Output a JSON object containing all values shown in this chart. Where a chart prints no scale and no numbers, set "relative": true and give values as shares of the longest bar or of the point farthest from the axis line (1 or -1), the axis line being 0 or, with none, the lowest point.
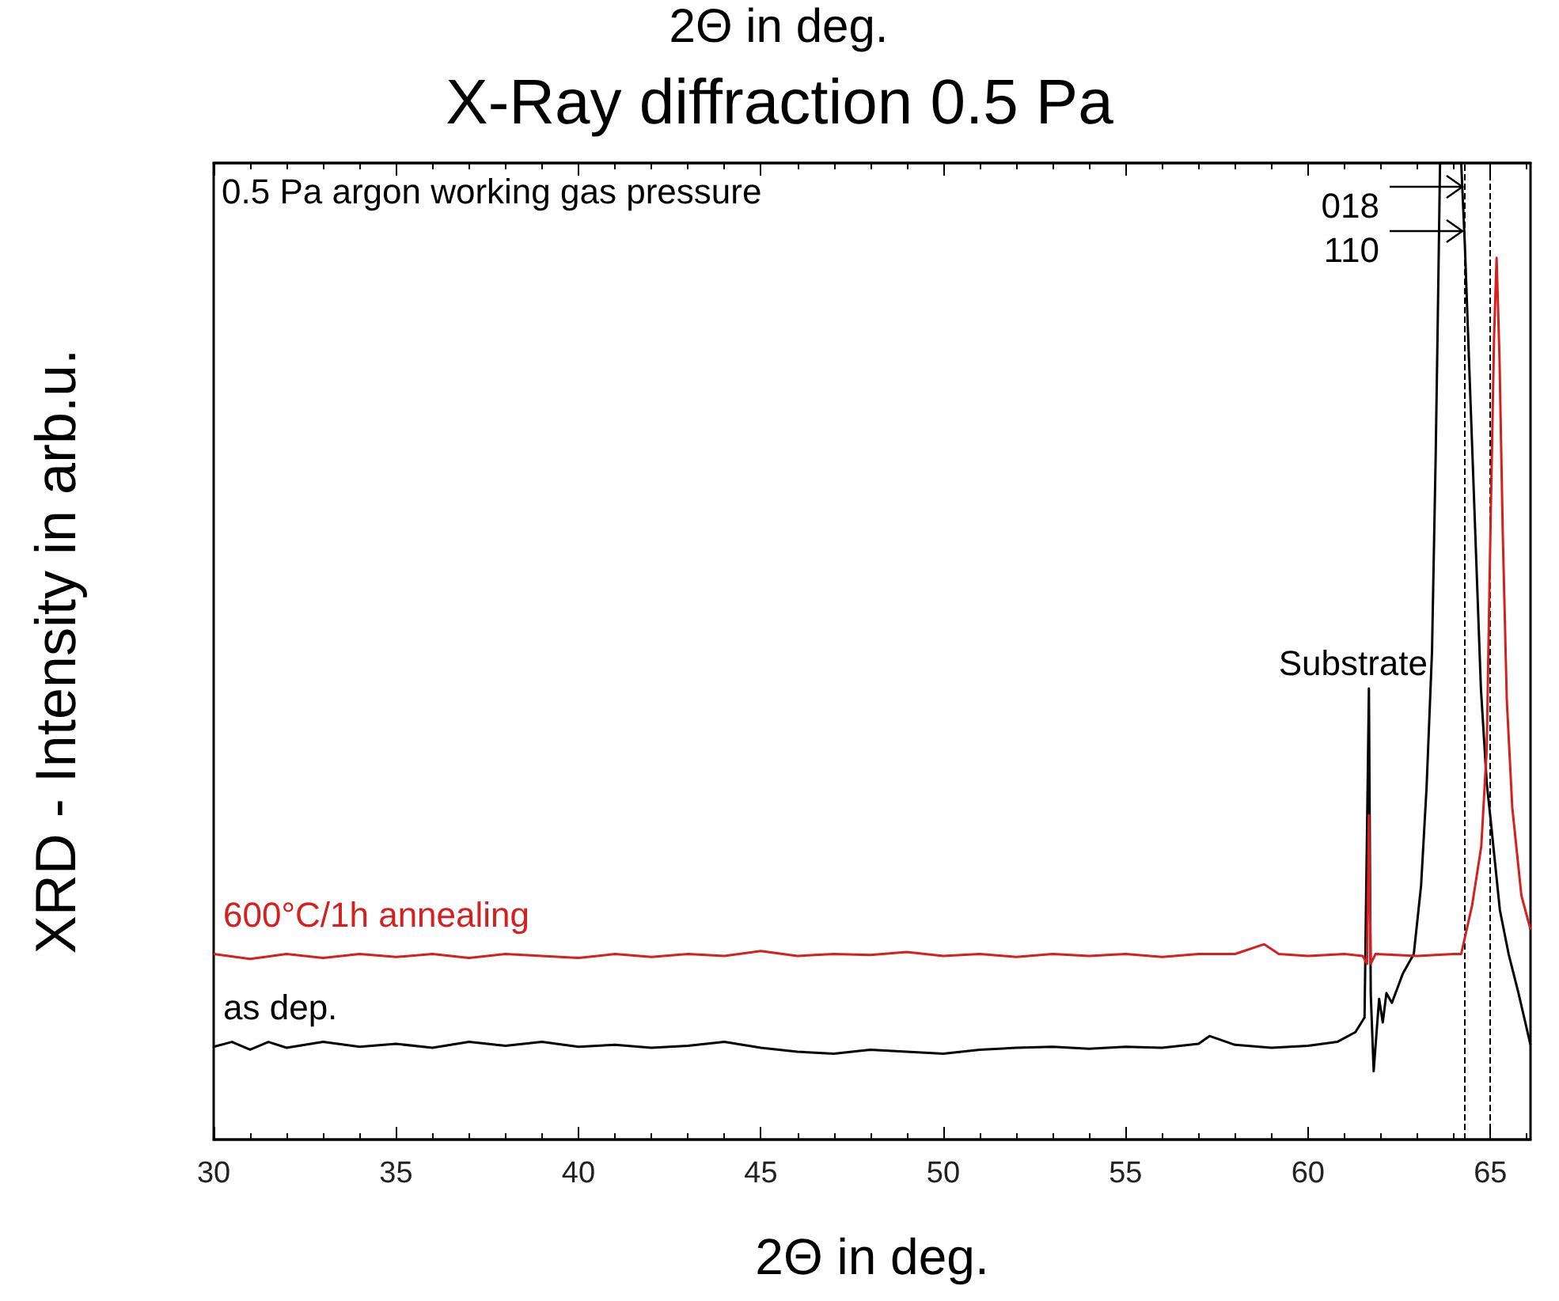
{
  "chart_data": {
    "type": "line",
    "title": "X-Ray diffraction 0.5 Pa",
    "xlabel": "2Θ in deg.",
    "ylabel": "XRD - Intensity in arb.u.",
    "relative": true,
    "xlim": [
      30,
      66.1
    ],
    "xticks": [
      30,
      35,
      40,
      45,
      50,
      55,
      60,
      65
    ],
    "grid": false,
    "legend": false,
    "marker": "none",
    "line_style": "solid",
    "annotations": [
      "2Θ in deg.",
      "0.5 Pa argon working gas pressure",
      "Substrate",
      "018",
      "110"
    ],
    "ref_lines": [
      {
        "axis": "x",
        "value": 64.3,
        "line_style": "dashed",
        "color": "#000000"
      },
      {
        "axis": "x",
        "value": 65.0,
        "line_style": "dashed",
        "color": "#000000"
      }
    ],
    "series": [
      {
        "name": "600°C/1h annealing",
        "color": "#d42020",
        "x": [
          30,
          31,
          32,
          33,
          34,
          35,
          36,
          37,
          38,
          39,
          40,
          41,
          42,
          43,
          44,
          45,
          46,
          47,
          48,
          49,
          50,
          51,
          52,
          53,
          54,
          55,
          56,
          57,
          58,
          58.8,
          59.2,
          60,
          61,
          61.5,
          61.62,
          61.67,
          61.72,
          61.85,
          63,
          64,
          64.2,
          64.5,
          64.75,
          64.9,
          65.0,
          65.1,
          65.17,
          65.25,
          65.34,
          65.45,
          65.6,
          65.85,
          66.1
        ],
        "values": [
          0.19,
          0.185,
          0.19,
          0.186,
          0.19,
          0.187,
          0.19,
          0.186,
          0.19,
          0.188,
          0.186,
          0.19,
          0.187,
          0.19,
          0.188,
          0.193,
          0.188,
          0.19,
          0.189,
          0.192,
          0.188,
          0.19,
          0.187,
          0.19,
          0.188,
          0.19,
          0.187,
          0.19,
          0.19,
          0.2,
          0.19,
          0.188,
          0.19,
          0.188,
          0.18,
          0.332,
          0.18,
          0.19,
          0.188,
          0.19,
          0.19,
          0.24,
          0.3,
          0.4,
          0.62,
          0.82,
          0.903,
          0.8,
          0.62,
          0.45,
          0.34,
          0.25,
          0.215
        ]
      },
      {
        "name": "as dep.",
        "color": "#000000",
        "x": [
          30,
          30.5,
          31,
          31.5,
          32,
          33,
          34,
          35,
          36,
          37,
          38,
          39,
          40,
          41,
          42,
          43,
          44,
          45,
          46,
          47,
          48,
          49,
          50,
          51,
          52,
          53,
          54,
          55,
          56,
          57,
          57.3,
          58,
          59,
          60,
          60.8,
          61.3,
          61.55,
          61.67,
          61.72,
          61.8,
          61.9,
          61.95,
          62.05,
          62.15,
          62.3,
          62.6,
          62.9,
          63.1,
          63.25,
          63.4,
          63.5,
          63.55,
          63.62,
          64.2,
          64.3,
          64.49,
          64.74,
          64.9,
          65.0,
          65.26,
          65.5,
          65.77,
          66.1
        ],
        "values": [
          0.095,
          0.1,
          0.092,
          0.1,
          0.094,
          0.1,
          0.095,
          0.098,
          0.094,
          0.1,
          0.096,
          0.1,
          0.095,
          0.097,
          0.094,
          0.096,
          0.1,
          0.094,
          0.09,
          0.088,
          0.092,
          0.09,
          0.088,
          0.092,
          0.094,
          0.095,
          0.093,
          0.095,
          0.094,
          0.098,
          0.106,
          0.097,
          0.094,
          0.096,
          0.1,
          0.11,
          0.125,
          0.462,
          0.15,
          0.07,
          0.12,
          0.144,
          0.12,
          0.15,
          0.14,
          0.17,
          0.19,
          0.26,
          0.36,
          0.5,
          0.7,
          0.82,
          1,
          1,
          0.916,
          0.72,
          0.462,
          0.365,
          0.33,
          0.235,
          0.19,
          0.15,
          0.097
        ]
      }
    ]
  }
}
